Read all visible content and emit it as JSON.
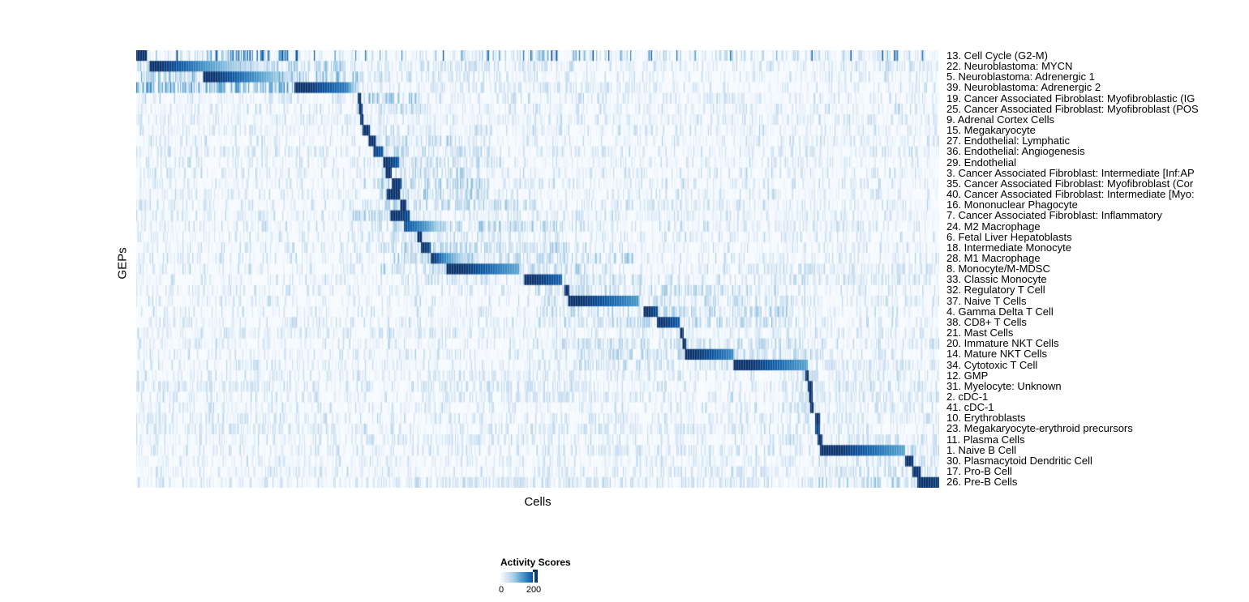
{
  "colors": {
    "background": "#ffffff",
    "text": "#000000",
    "cmap_name": "Blues",
    "cmap": [
      "#f7fbff",
      "#deebf7",
      "#c6dbef",
      "#9ecae1",
      "#6baed6",
      "#4292c6",
      "#2171b5",
      "#08519c",
      "#08306b"
    ]
  },
  "chart_data": {
    "type": "heatmap",
    "title": "",
    "xlabel": "Cells",
    "ylabel": "GEPs",
    "x_axis": {
      "tick_labels_shown": false,
      "description": "single cells, columns unlabeled"
    },
    "legend": {
      "title": "Activity Scores",
      "position": "bottom-center"
    },
    "colorbar": {
      "min": 0,
      "max": 200,
      "ticks": [
        "0",
        "200"
      ]
    },
    "rows": [
      {
        "label": "13. Cell Cycle (G2-M)",
        "block": {
          "s": 0.0,
          "e": 0.013,
          "peak": 205,
          "end": 205
        },
        "noise": [
          [
            0,
            1,
            0.95,
            0.1
          ],
          [
            0.07,
            0.19,
            0.95,
            0.35
          ],
          [
            0.43,
            0.56,
            0.65,
            0.25
          ]
        ]
      },
      {
        "label": "22. Neuroblastoma: MYCN",
        "block": {
          "s": 0.016,
          "e": 0.081,
          "fade": 0.162,
          "peak": 210,
          "end": 130
        },
        "noise": [
          [
            0,
            0.28,
            0.5,
            0.45
          ],
          [
            0.3,
            0.55,
            0.3,
            0.35
          ],
          [
            0.55,
            1,
            0.18,
            0.25
          ]
        ]
      },
      {
        "label": "5. Neuroblastoma: Adrenergic 1",
        "block": {
          "s": 0.083,
          "e": 0.152,
          "fade": 0.205,
          "peak": 210,
          "end": 120
        },
        "noise": [
          [
            0,
            0.28,
            0.55,
            0.45
          ],
          [
            0.3,
            0.5,
            0.28,
            0.3
          ]
        ]
      },
      {
        "label": "39. Neuroblastoma: Adrenergic 2",
        "block": {
          "s": 0.197,
          "e": 0.262,
          "fade": 0.278,
          "peak": 210,
          "end": 140
        },
        "noise": [
          [
            0,
            0.2,
            0.7,
            0.5
          ],
          [
            0.2,
            0.28,
            0.5,
            0.4
          ],
          [
            0.45,
            0.62,
            0.25,
            0.3
          ]
        ]
      },
      {
        "label": "19. Cancer Associated Fibroblast: Myofibroblastic (IG",
        "block": {
          "s": 0.2755,
          "e": 0.28,
          "peak": 205,
          "end": 205
        },
        "noise": [
          [
            0.29,
            0.37,
            0.5,
            0.4
          ],
          [
            0.6,
            0.78,
            0.2,
            0.25
          ]
        ]
      },
      {
        "label": "25. Cancer Associated Fibroblast: Myofibroblast (POS",
        "block": {
          "s": 0.277,
          "e": 0.282,
          "peak": 200,
          "end": 200
        },
        "noise": [
          [
            0.29,
            0.37,
            0.38,
            0.35
          ],
          [
            0,
            1,
            0.12,
            0.15
          ]
        ]
      },
      {
        "label": "9. Adrenal Cortex Cells",
        "block": {
          "s": 0.279,
          "e": 0.284,
          "peak": 195,
          "end": 195
        },
        "noise": [
          [
            0,
            1,
            0.12,
            0.2
          ]
        ]
      },
      {
        "label": "15. Megakaryocyte",
        "block": {
          "s": 0.282,
          "e": 0.291,
          "peak": 205,
          "end": 205
        },
        "noise": [
          [
            0.3,
            0.38,
            0.32,
            0.35
          ],
          [
            0,
            1,
            0.1,
            0.15
          ]
        ]
      },
      {
        "label": "27. Endothelial: Lymphatic",
        "block": {
          "s": 0.289,
          "e": 0.299,
          "peak": 205,
          "end": 205
        },
        "noise": [
          [
            0.3,
            0.41,
            0.42,
            0.4
          ],
          [
            0.84,
            0.93,
            0.28,
            0.3
          ]
        ]
      },
      {
        "label": "36. Endothelial: Angiogenesis",
        "block": {
          "s": 0.295,
          "e": 0.307,
          "peak": 190,
          "end": 170
        },
        "noise": [
          [
            0.3,
            0.44,
            0.42,
            0.4
          ],
          [
            0,
            1,
            0.1,
            0.15
          ]
        ]
      },
      {
        "label": "29. Endothelial",
        "block": {
          "s": 0.307,
          "e": 0.327,
          "peak": 205,
          "end": 170
        },
        "noise": [
          [
            0.3,
            0.46,
            0.38,
            0.4
          ]
        ]
      },
      {
        "label": "3. Cancer Associated Fibroblast: Intermediate [Inf:AP",
        "block": {
          "s": 0.311,
          "e": 0.318,
          "peak": 205,
          "end": 205
        },
        "noise": [
          [
            0.3,
            0.42,
            0.42,
            0.4
          ],
          [
            0,
            0.09,
            0.22,
            0.25
          ]
        ]
      },
      {
        "label": "35. Cancer Associated Fibroblast: Myofibroblast (Cor",
        "block": {
          "s": 0.318,
          "e": 0.331,
          "peak": 205,
          "end": 190
        },
        "noise": [
          [
            0.28,
            0.44,
            0.45,
            0.45
          ]
        ]
      },
      {
        "label": "40. Cancer Associated Fibroblast: Intermediate [Myo:",
        "block": {
          "s": 0.312,
          "e": 0.329,
          "peak": 210,
          "end": 205
        },
        "noise": [
          [
            0.3,
            0.44,
            0.45,
            0.4
          ]
        ]
      },
      {
        "label": "16. Mononuclear Phagocyte",
        "block": {
          "s": 0.329,
          "e": 0.337,
          "peak": 205,
          "end": 205
        },
        "noise": [
          [
            0.3,
            0.5,
            0.42,
            0.4
          ],
          [
            0.55,
            0.73,
            0.25,
            0.3
          ]
        ]
      },
      {
        "label": "7. Cancer Associated Fibroblast: Inflammatory",
        "block": {
          "s": 0.316,
          "e": 0.341,
          "peak": 205,
          "end": 180
        },
        "noise": [
          [
            0.27,
            0.33,
            0.45,
            0.4
          ],
          [
            0,
            1,
            0.12,
            0.2
          ]
        ]
      },
      {
        "label": "24. M2 Macrophage",
        "block": {
          "s": 0.333,
          "e": 0.361,
          "fade": 0.39,
          "peak": 175,
          "end": 120
        },
        "noise": [
          [
            0.3,
            0.56,
            0.45,
            0.45
          ],
          [
            0.7,
            0.92,
            0.25,
            0.3
          ]
        ]
      },
      {
        "label": "6. Fetal Liver Hepatoblasts",
        "block": {
          "s": 0.35,
          "e": 0.356,
          "peak": 205,
          "end": 205
        },
        "noise": [
          [
            0.3,
            0.46,
            0.3,
            0.35
          ]
        ]
      },
      {
        "label": "18. Intermediate Monocyte",
        "block": {
          "s": 0.354,
          "e": 0.366,
          "peak": 205,
          "end": 180
        },
        "noise": [
          [
            0.3,
            0.56,
            0.45,
            0.45
          ]
        ]
      },
      {
        "label": "28. M1 Macrophage",
        "block": {
          "s": 0.367,
          "e": 0.382,
          "fade": 0.42,
          "peak": 205,
          "end": 140
        },
        "noise": [
          [
            0.32,
            0.62,
            0.45,
            0.45
          ]
        ]
      },
      {
        "label": "8. Monocyte/M-MDSC",
        "block": {
          "s": 0.386,
          "e": 0.478,
          "peak": 215,
          "end": 105
        },
        "noise": [
          [
            0.3,
            0.56,
            0.42,
            0.4
          ],
          [
            0.75,
            1,
            0.3,
            0.3
          ]
        ]
      },
      {
        "label": "33. Classic Monocyte",
        "block": {
          "s": 0.483,
          "e": 0.53,
          "peak": 210,
          "end": 160
        },
        "noise": [
          [
            0.35,
            0.63,
            0.4,
            0.4
          ],
          [
            0.78,
            1,
            0.28,
            0.3
          ]
        ]
      },
      {
        "label": "32. Regulatory T Cell",
        "block": {
          "s": 0.533,
          "e": 0.539,
          "peak": 205,
          "end": 205
        },
        "noise": [
          [
            0.5,
            0.8,
            0.4,
            0.4
          ],
          [
            0,
            0.12,
            0.2,
            0.25
          ]
        ]
      },
      {
        "label": "37. Naive T Cells",
        "block": {
          "s": 0.538,
          "e": 0.626,
          "peak": 210,
          "end": 120
        },
        "noise": [
          [
            0.5,
            0.83,
            0.35,
            0.4
          ]
        ]
      },
      {
        "label": "4. Gamma Delta T Cell",
        "block": {
          "s": 0.632,
          "e": 0.65,
          "peak": 210,
          "end": 175
        },
        "noise": [
          [
            0.5,
            0.81,
            0.45,
            0.4
          ]
        ]
      },
      {
        "label": "38. CD8+ T Cells",
        "block": {
          "s": 0.648,
          "e": 0.677,
          "peak": 205,
          "end": 165
        },
        "noise": [
          [
            0.5,
            0.83,
            0.45,
            0.4
          ]
        ]
      },
      {
        "label": "21. Mast Cells",
        "block": {
          "s": 0.678,
          "e": 0.682,
          "peak": 205,
          "end": 205
        },
        "noise": [
          [
            0,
            1,
            0.13,
            0.2
          ]
        ]
      },
      {
        "label": "20. Immature NKT Cells",
        "block": {
          "s": 0.681,
          "e": 0.685,
          "peak": 205,
          "end": 205
        },
        "noise": [
          [
            0.52,
            0.83,
            0.4,
            0.4
          ]
        ]
      },
      {
        "label": "14. Mature NKT Cells",
        "block": {
          "s": 0.684,
          "e": 0.744,
          "peak": 210,
          "end": 130
        },
        "noise": [
          [
            0.55,
            0.86,
            0.4,
            0.4
          ]
        ]
      },
      {
        "label": "34. Cytotoxic T Cell",
        "block": {
          "s": 0.744,
          "e": 0.836,
          "peak": 215,
          "end": 110
        },
        "noise": [
          [
            0.55,
            0.82,
            0.35,
            0.35
          ],
          [
            0.85,
            1,
            0.28,
            0.3
          ]
        ]
      },
      {
        "label": "12. GMP",
        "block": {
          "s": 0.833,
          "e": 0.838,
          "peak": 205,
          "end": 205
        },
        "noise": [
          [
            0.35,
            0.56,
            0.28,
            0.3
          ],
          [
            0.8,
            0.97,
            0.3,
            0.3
          ]
        ]
      },
      {
        "label": "31. Myelocyte: Unknown",
        "block": {
          "s": 0.837,
          "e": 0.842,
          "peak": 200,
          "end": 200
        },
        "noise": [
          [
            0,
            0.2,
            0.28,
            0.3
          ],
          [
            0.35,
            0.6,
            0.3,
            0.35
          ],
          [
            0.8,
            1,
            0.3,
            0.35
          ]
        ]
      },
      {
        "label": "2. cDC-1",
        "block": {
          "s": 0.838,
          "e": 0.843,
          "peak": 205,
          "end": 205
        },
        "noise": [
          [
            0.35,
            0.6,
            0.28,
            0.3
          ],
          [
            0.8,
            1,
            0.28,
            0.3
          ]
        ]
      },
      {
        "label": "41. cDC-1",
        "block": {
          "s": 0.839,
          "e": 0.844,
          "peak": 205,
          "end": 205
        },
        "noise": [
          [
            0,
            0.15,
            0.2,
            0.25
          ],
          [
            0.8,
            1,
            0.28,
            0.3
          ]
        ]
      },
      {
        "label": "10. Erythroblasts",
        "block": {
          "s": 0.845,
          "e": 0.851,
          "peak": 205,
          "end": 205
        },
        "noise": [
          [
            0,
            0.2,
            0.28,
            0.3
          ],
          [
            0.8,
            1,
            0.28,
            0.3
          ]
        ]
      },
      {
        "label": "23. Megakaryocyte-erythroid precursors",
        "block": {
          "s": 0.845,
          "e": 0.851,
          "peak": 185,
          "end": 185
        },
        "noise": [
          [
            0,
            0.25,
            0.3,
            0.35
          ],
          [
            0.5,
            0.76,
            0.22,
            0.3
          ]
        ]
      },
      {
        "label": "11. Plasma Cells",
        "block": {
          "s": 0.849,
          "e": 0.854,
          "peak": 205,
          "end": 205
        },
        "noise": [
          [
            0.3,
            0.5,
            0.2,
            0.25
          ],
          [
            0.8,
            1,
            0.3,
            0.3
          ]
        ]
      },
      {
        "label": "1. Naive B Cell",
        "block": {
          "s": 0.851,
          "e": 0.957,
          "peak": 215,
          "end": 110
        },
        "noise": [
          [
            0.5,
            0.76,
            0.28,
            0.3
          ],
          [
            0.85,
            1,
            0.4,
            0.4
          ]
        ]
      },
      {
        "label": "30. Plasmacytoid Dendritic Cell",
        "block": {
          "s": 0.957,
          "e": 0.968,
          "peak": 205,
          "end": 195
        },
        "noise": [
          [
            0.85,
            1,
            0.35,
            0.35
          ],
          [
            0,
            1,
            0.1,
            0.15
          ]
        ]
      },
      {
        "label": "17. Pro-B Cell",
        "block": {
          "s": 0.966,
          "e": 0.977,
          "peak": 205,
          "end": 195
        },
        "noise": [
          [
            0.5,
            0.8,
            0.28,
            0.3
          ],
          [
            0.85,
            1,
            0.35,
            0.35
          ]
        ]
      },
      {
        "label": "26. Pre-B Cells",
        "block": {
          "s": 0.973,
          "e": 1.0,
          "peak": 210,
          "end": 190
        },
        "noise": [
          [
            0.3,
            0.8,
            0.3,
            0.35
          ],
          [
            0.85,
            1,
            0.45,
            0.4
          ]
        ]
      }
    ]
  }
}
